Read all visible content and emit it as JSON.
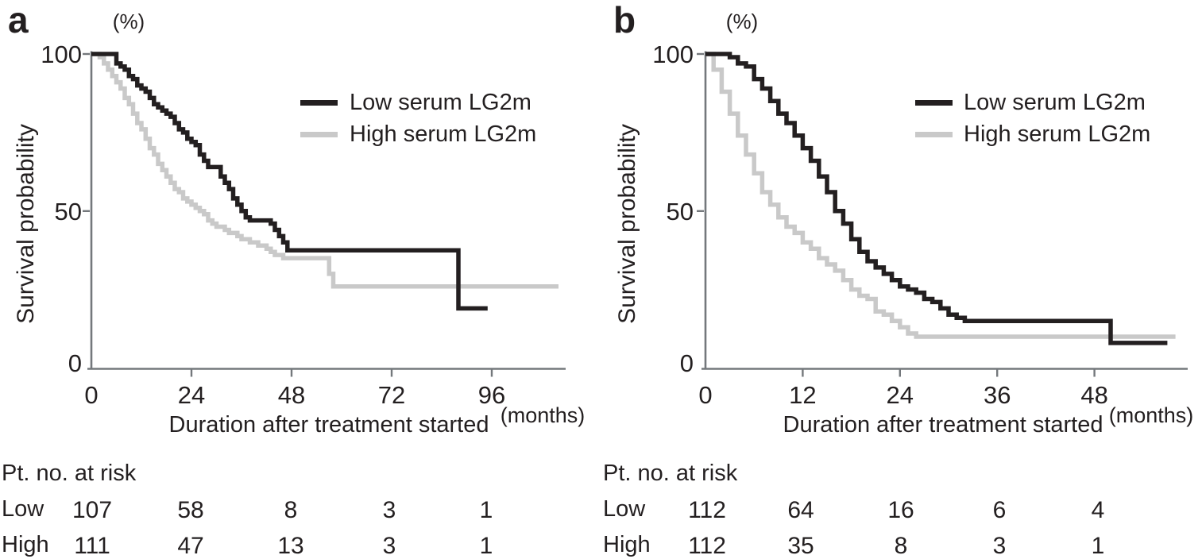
{
  "figure_type": "kaplan_meier_survival_figure",
  "shared": {
    "y_axis_label": "Survival probability",
    "y_unit": "(%)",
    "x_axis_label": "Duration after treatment started",
    "x_unit": "(months)",
    "risk_table_header": "Pt. no. at risk",
    "colors": {
      "low_serum": "#231f20",
      "high_serum": "#c9c9c9",
      "axis": "#74787c",
      "text": "#231f20",
      "background": "#ffffff"
    }
  },
  "chart_data": [
    {
      "type": "line",
      "subtype": "kaplan_meier_step",
      "panel_label": "a",
      "title": "",
      "xlabel": "Duration after treatment started",
      "x_unit": "(months)",
      "ylabel": "Survival probability",
      "y_unit": "(%)",
      "xlim": [
        0,
        114
      ],
      "ylim": [
        0,
        100
      ],
      "xticks": [
        0,
        24,
        48,
        72,
        96
      ],
      "yticks": [
        100,
        50,
        0
      ],
      "grid": false,
      "legend_position": "upper right",
      "series": [
        {
          "name": "Low serum LG2m",
          "color": "#231f20",
          "style": "step",
          "points": [
            [
              0,
              100
            ],
            [
              5,
              100
            ],
            [
              6,
              97
            ],
            [
              7,
              96
            ],
            [
              8,
              95
            ],
            [
              9,
              93
            ],
            [
              10,
              92
            ],
            [
              11,
              90
            ],
            [
              12,
              89
            ],
            [
              13,
              88
            ],
            [
              14,
              86
            ],
            [
              15,
              84
            ],
            [
              16,
              83
            ],
            [
              17,
              82
            ],
            [
              18,
              81
            ],
            [
              19,
              80
            ],
            [
              20,
              78
            ],
            [
              21,
              76
            ],
            [
              22,
              75
            ],
            [
              23,
              73
            ],
            [
              24,
              72
            ],
            [
              25,
              71
            ],
            [
              26,
              68
            ],
            [
              27,
              66
            ],
            [
              28,
              64
            ],
            [
              30,
              64
            ],
            [
              31,
              61
            ],
            [
              32,
              59
            ],
            [
              33,
              57
            ],
            [
              34,
              54
            ],
            [
              35,
              52
            ],
            [
              36,
              50
            ],
            [
              37,
              48
            ],
            [
              38,
              47
            ],
            [
              42,
              47
            ],
            [
              43,
              46
            ],
            [
              44,
              44
            ],
            [
              45,
              42
            ],
            [
              46,
              40
            ],
            [
              47,
              37.5
            ],
            [
              88,
              37.5
            ],
            [
              88,
              19
            ],
            [
              95,
              19
            ]
          ]
        },
        {
          "name": "High serum LG2m",
          "color": "#c9c9c9",
          "style": "step",
          "points": [
            [
              0,
              100
            ],
            [
              2,
              99
            ],
            [
              3,
              97
            ],
            [
              4,
              95
            ],
            [
              5,
              93
            ],
            [
              6,
              91
            ],
            [
              7,
              89
            ],
            [
              8,
              86
            ],
            [
              9,
              84
            ],
            [
              10,
              81
            ],
            [
              11,
              78
            ],
            [
              12,
              76
            ],
            [
              13,
              73
            ],
            [
              14,
              70
            ],
            [
              15,
              68
            ],
            [
              16,
              65
            ],
            [
              17,
              63
            ],
            [
              18,
              61
            ],
            [
              19,
              59
            ],
            [
              20,
              57
            ],
            [
              21,
              56
            ],
            [
              22,
              54
            ],
            [
              23,
              53
            ],
            [
              24,
              52
            ],
            [
              25,
              51
            ],
            [
              26,
              50
            ],
            [
              27,
              49
            ],
            [
              28,
              47
            ],
            [
              29,
              46
            ],
            [
              30,
              45
            ],
            [
              32,
              44
            ],
            [
              33,
              43
            ],
            [
              35,
              42
            ],
            [
              36,
              41
            ],
            [
              38,
              40
            ],
            [
              40,
              39
            ],
            [
              42,
              38
            ],
            [
              43,
              37
            ],
            [
              44,
              36
            ],
            [
              46,
              35
            ],
            [
              56,
              35
            ],
            [
              57,
              30
            ],
            [
              58,
              26
            ],
            [
              112,
              26
            ]
          ]
        }
      ],
      "risk_table": {
        "header": "Pt. no. at risk",
        "times": [
          0,
          24,
          48,
          72,
          96
        ],
        "rows": [
          {
            "label": "Low",
            "counts": [
              107,
              58,
              8,
              3,
              1
            ]
          },
          {
            "label": "High",
            "counts": [
              111,
              47,
              13,
              3,
              1
            ]
          }
        ]
      }
    },
    {
      "type": "line",
      "subtype": "kaplan_meier_step",
      "panel_label": "b",
      "title": "",
      "xlabel": "Duration after treatment started",
      "x_unit": "(months)",
      "ylabel": "Survival probability",
      "y_unit": "(%)",
      "xlim": [
        0,
        59
      ],
      "ylim": [
        0,
        100
      ],
      "xticks": [
        0,
        12,
        24,
        36,
        48
      ],
      "yticks": [
        100,
        50,
        0
      ],
      "grid": false,
      "legend_position": "upper right",
      "series": [
        {
          "name": "Low serum LG2m",
          "color": "#231f20",
          "style": "step",
          "points": [
            [
              0,
              100
            ],
            [
              2,
              100
            ],
            [
              3,
              99
            ],
            [
              4,
              97
            ],
            [
              5,
              96
            ],
            [
              6,
              92
            ],
            [
              7,
              89
            ],
            [
              8,
              85
            ],
            [
              9,
              81
            ],
            [
              10,
              78
            ],
            [
              11,
              74
            ],
            [
              12,
              70
            ],
            [
              13,
              66
            ],
            [
              14,
              61
            ],
            [
              15,
              56
            ],
            [
              16,
              50
            ],
            [
              17,
              46
            ],
            [
              18,
              41
            ],
            [
              19,
              37
            ],
            [
              20,
              34
            ],
            [
              21,
              32
            ],
            [
              22,
              30
            ],
            [
              23,
              28
            ],
            [
              24,
              26
            ],
            [
              25,
              25
            ],
            [
              26,
              24
            ],
            [
              27,
              22
            ],
            [
              28,
              21
            ],
            [
              29,
              19
            ],
            [
              30,
              17
            ],
            [
              31,
              16
            ],
            [
              32,
              15
            ],
            [
              50,
              15
            ],
            [
              50,
              8
            ],
            [
              57,
              8
            ]
          ]
        },
        {
          "name": "High serum LG2m",
          "color": "#c9c9c9",
          "style": "step",
          "points": [
            [
              0,
              100
            ],
            [
              1,
              95
            ],
            [
              2,
              88
            ],
            [
              3,
              81
            ],
            [
              4,
              74
            ],
            [
              5,
              68
            ],
            [
              6,
              62
            ],
            [
              7,
              56
            ],
            [
              8,
              52
            ],
            [
              9,
              48
            ],
            [
              10,
              45
            ],
            [
              11,
              43
            ],
            [
              12,
              40
            ],
            [
              13,
              38
            ],
            [
              14,
              35
            ],
            [
              15,
              33
            ],
            [
              16,
              31
            ],
            [
              17,
              28
            ],
            [
              18,
              25
            ],
            [
              19,
              23
            ],
            [
              20,
              22
            ],
            [
              21,
              18
            ],
            [
              22,
              17
            ],
            [
              23,
              15
            ],
            [
              24,
              13
            ],
            [
              25,
              11
            ],
            [
              26,
              10
            ],
            [
              58,
              10
            ]
          ]
        }
      ],
      "risk_table": {
        "header": "Pt. no. at risk",
        "times": [
          0,
          12,
          24,
          36,
          48
        ],
        "rows": [
          {
            "label": "Low",
            "counts": [
              112,
              64,
              16,
              6,
              4
            ]
          },
          {
            "label": "High",
            "counts": [
              112,
              35,
              8,
              3,
              1
            ]
          }
        ]
      }
    }
  ]
}
